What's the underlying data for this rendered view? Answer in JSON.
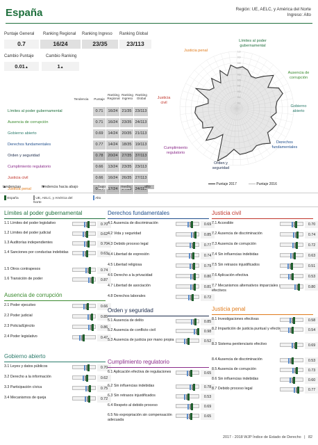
{
  "header": {
    "country": "España",
    "region_line1": "Región: UE, AELC, y América del Norte",
    "region_line2": "Ingreso: Alto"
  },
  "summary": {
    "labels": {
      "score": "Puntaje General",
      "regional": "Ranking Regional",
      "income": "Ranking Ingreso",
      "global": "Ranking Global",
      "score_change": "Cambio Puntaje",
      "rank_change": "Cambio Ranking"
    },
    "score": "0.7",
    "regional": "16/24",
    "income": "23/35",
    "global": "23/113",
    "score_change": "0.01",
    "score_change_arrow": "▲",
    "rank_change": "1",
    "rank_change_arrow": "▲"
  },
  "factor_table": {
    "headers": {
      "trend": "Tendencia",
      "score": "Puntaje",
      "regional": "Ranking Regional",
      "income": "Ranking Ingreso",
      "global": "Ranking Global"
    },
    "rows": [
      {
        "name": "Límites al poder gubernamental",
        "score": "0.71",
        "regional": "16/24",
        "income": "21/35",
        "global": "23/113",
        "color": "#1e6f3c",
        "tier": "mid"
      },
      {
        "name": "Ausencia de corrupción",
        "score": "0.71",
        "regional": "16/24",
        "income": "23/35",
        "global": "24/113",
        "color": "#3a8a2e",
        "tier": "mid"
      },
      {
        "name": "Gobierno abierto",
        "score": "0.69",
        "regional": "14/24",
        "income": "20/35",
        "global": "21/113",
        "color": "#2a7a6a",
        "tier": "mid"
      },
      {
        "name": "Derechos fundamentales",
        "score": "0.77",
        "regional": "14/24",
        "income": "18/35",
        "global": "19/113",
        "color": "#1f4e8c",
        "tier": "mid"
      },
      {
        "name": "Orden y seguridad",
        "score": "0.78",
        "regional": "20/24",
        "income": "27/35",
        "global": "37/113",
        "color": "#1a2a4a",
        "tier": "hi"
      },
      {
        "name": "Cumplimiento regulatorio",
        "score": "0.66",
        "regional": "13/24",
        "income": "23/35",
        "global": "23/113",
        "color": "#8a2a8a",
        "tier": "mid"
      },
      {
        "name": "Justicia civil",
        "score": "0.66",
        "regional": "16/24",
        "income": "26/35",
        "global": "27/113",
        "color": "#c0342a",
        "tier": "mid"
      },
      {
        "name": "Justicia penal",
        "score": "0.64",
        "regional": "17/24",
        "income": "24/35",
        "global": "24/113",
        "color": "#e07a1a",
        "tier": "hi"
      }
    ]
  },
  "legend": {
    "up": "tendencias",
    "down": "tendencia hacia abajo",
    "low": "bajo",
    "mid": "medio",
    "high": "alto"
  },
  "radar": {
    "labels": {
      "limites": "Límites al poder gubernamental",
      "corrupcion": "Ausencia de corrupción",
      "gobierno": "Gobierno abierto",
      "derechos": "Derechos fundamentales",
      "orden": "Orden y seguridad",
      "regulatorio": "Cumplimiento regulatorio",
      "civil": "Justicia civil",
      "penal": "Justicia penal"
    },
    "legend_2017": "Puntaje 2017",
    "legend_2016": "Puntaje 2016",
    "scale_labels": [
      "0.1",
      "0.2",
      "0.3",
      "0.4",
      "0.5",
      "0.6",
      "0.7",
      "0.8",
      "0.9",
      "1.0"
    ],
    "series_2017": [
      0.71,
      0.74,
      0.7,
      0.62,
      0.63,
      0.74,
      0.87,
      0.66,
      0.82,
      0.85,
      0.72,
      0.69,
      0.7,
      0.62,
      0.75,
      0.72,
      0.69,
      0.85,
      0.77,
      0.74,
      0.79,
      0.8,
      0.81,
      0.72,
      0.85,
      0.98,
      0.52,
      0.65,
      0.78,
      0.53,
      0.69,
      0.65,
      0.7,
      0.74,
      0.72,
      0.51,
      0.53,
      0.8,
      0.58,
      0.54,
      0.69,
      0.53,
      0.73,
      0.6,
      0.77
    ],
    "series_2016": [
      0.7,
      0.73,
      0.69,
      0.61,
      0.62,
      0.73,
      0.86,
      0.65,
      0.81,
      0.84,
      0.71,
      0.68,
      0.69,
      0.61,
      0.74,
      0.71,
      0.68,
      0.84,
      0.76,
      0.73,
      0.78,
      0.79,
      0.8,
      0.71,
      0.84,
      0.97,
      0.51,
      0.64,
      0.77,
      0.52,
      0.68,
      0.64,
      0.69,
      0.73,
      0.71,
      0.5,
      0.52,
      0.79,
      0.57,
      0.53,
      0.68,
      0.52,
      0.72,
      0.59,
      0.76
    ]
  },
  "comparison_legend": {
    "country": "España",
    "region": "UE, AELC, y América del Norte",
    "high": "Alto"
  },
  "sections": {
    "limites": {
      "title": "Límites al poder gubernamental",
      "color": "#1e6f3c",
      "items": [
        {
          "label": "1.1  Límites del poder legislativo",
          "value": "0.70"
        },
        {
          "label": "1.2  Límites del poder judicial",
          "value": "0.62"
        },
        {
          "label": "1.3  Auditorías independientes",
          "value": "0.70"
        },
        {
          "label": "1.4  Sanciones por conductas indebidas",
          "value": "0.63"
        },
        {
          "label": "1.5  Otros contrapesos",
          "value": "0.74"
        },
        {
          "label": "1.6  Transición de poder",
          "value": "0.87"
        }
      ]
    },
    "corrupcion": {
      "title": "Ausencia de corrupción",
      "color": "#3a8a2e",
      "items": [
        {
          "label": "2.1  Poder ejecutivo",
          "value": "0.66"
        },
        {
          "label": "2.2  Poder judicial",
          "value": "0.85"
        },
        {
          "label": "2.3  Policía/Ejército",
          "value": "0.86"
        },
        {
          "label": "2.4  Poder legislativo",
          "value": "0.47"
        }
      ]
    },
    "gobierno": {
      "title": "Gobierno abierto",
      "color": "#2a7a6a",
      "items": [
        {
          "label": "3.1  Leyes y datos públicos",
          "value": "0.70"
        },
        {
          "label": "3.2  Derecho a la información",
          "value": "0.62"
        },
        {
          "label": "3.3  Participación cívica",
          "value": "0.75"
        },
        {
          "label": "3.4  Mecanismos de queja",
          "value": "0.72"
        }
      ]
    },
    "derechos": {
      "title": "Derechos fundamentales",
      "color": "#1f4e8c",
      "items": [
        {
          "label": "4.1  Ausencia de discriminación",
          "value": "0.69"
        },
        {
          "label": "4.2  Vida y seguridad",
          "value": "0.85"
        },
        {
          "label": "4.3  Debido proceso legal",
          "value": "0.77"
        },
        {
          "label": "4.4  Libertad de expresión",
          "value": "0.74"
        },
        {
          "label": "4.5  Libertad religiosa",
          "value": "0.79"
        },
        {
          "label": "4.6  Derecho a la privacidad",
          "value": "0.80"
        },
        {
          "label": "4.7  Libertad de asociación",
          "value": "0.81"
        },
        {
          "label": "4.8  Derechos laborales",
          "value": "0.72"
        }
      ]
    },
    "orden": {
      "title": "Orden y seguridad",
      "color": "#1a2a4a",
      "items": [
        {
          "label": "5.1  Ausencia de delito",
          "value": "0.85"
        },
        {
          "label": "5.2  Ausencia de conflicto civil",
          "value": "0.98"
        },
        {
          "label": "5.3  Ausencia de justicia por mano propia",
          "value": "0.52"
        }
      ]
    },
    "regulatorio": {
      "title": "Cumplimiento regulatorio",
      "color": "#8a2a8a",
      "items": [
        {
          "label": "6.1  Aplicación efectiva de regulaciones",
          "value": "0.65"
        },
        {
          "label": "6.2  Sin influencias indebidas",
          "value": "0.78"
        },
        {
          "label": "6.3  Sin retrasos injustificados",
          "value": "0.53"
        },
        {
          "label": "6.4  Respeto al debido proceso",
          "value": "0.69"
        },
        {
          "label": "6.5  No expropriación sin compensación adecuada",
          "value": "0.65"
        }
      ]
    },
    "civil": {
      "title": "Justicia civil",
      "color": "#c0342a",
      "items": [
        {
          "label": "7.1  Accesible",
          "value": "0.70"
        },
        {
          "label": "7.2  Ausencia de discriminación",
          "value": "0.74"
        },
        {
          "label": "7.3  Ausencia de corrupción",
          "value": "0.72"
        },
        {
          "label": "7.4  Sin influencias indebidas",
          "value": "0.63"
        },
        {
          "label": "7.5  Sin retrasos injustificados",
          "value": "0.51"
        },
        {
          "label": "7.6  Aplicación efectiva",
          "value": "0.53"
        },
        {
          "label": "7.7  Mecanismos alternativos imparciales y efectivos",
          "value": "0.80"
        }
      ]
    },
    "penal": {
      "title": "Justicia penal",
      "color": "#e07a1a",
      "items": [
        {
          "label": "8.1  Investigaciones efectivas",
          "value": "0.58"
        },
        {
          "label": "8.2  Impartición de justicia puntual y efectiva",
          "value": "0.54"
        },
        {
          "label": "8.3  Sistema penitenciario efectivo",
          "value": "0.69"
        },
        {
          "label": "8.4  Ausencia de discriminación",
          "value": "0.53"
        },
        {
          "label": "8.5  Ausencia de corrupción",
          "value": "0.73"
        },
        {
          "label": "8.6  Sin influencias indebidas",
          "value": "0.60"
        },
        {
          "label": "8.7  Debido proceso legal",
          "value": "0.77"
        }
      ]
    }
  },
  "footer": {
    "text": "2017 - 2018 WJP Índice de Estado de Derecho",
    "page": "82"
  }
}
